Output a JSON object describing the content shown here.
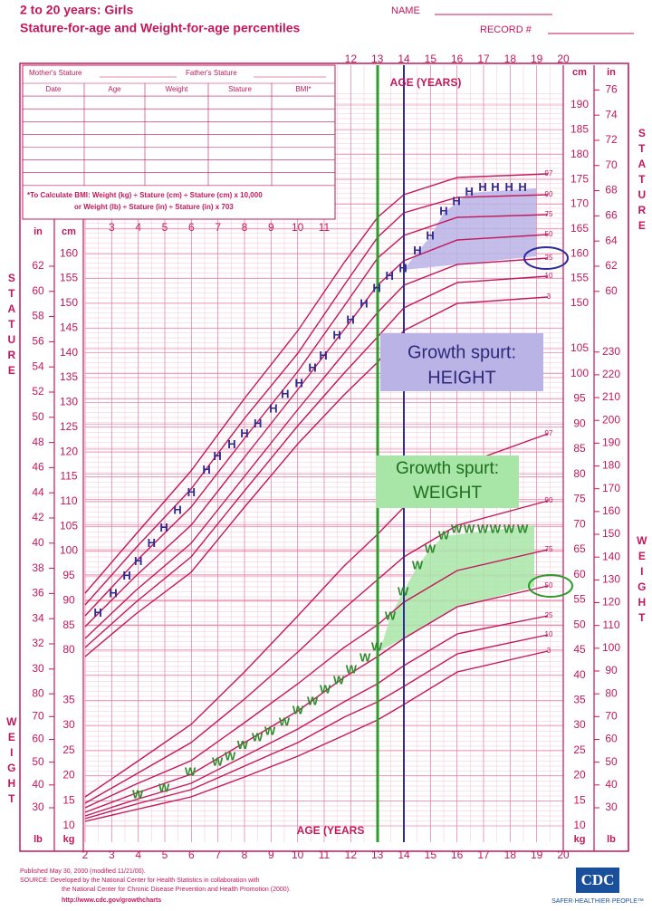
{
  "chart_data": {
    "type": "growth",
    "title": "2 to 20 years: Girls",
    "subtitle": "Stature-for-age and Weight-for-age percentiles",
    "name_label": "NAME",
    "record_label": "RECORD #",
    "x_label_top": "AGE (YEARS)",
    "x_label_bottom": "AGE (YEARS",
    "stature_label": "STATURE",
    "weight_label": "WEIGHT",
    "unit_cm": "cm",
    "unit_in": "in",
    "unit_kg": "kg",
    "unit_lb": "lb",
    "xlim": [
      2,
      20
    ],
    "xticks": [
      2,
      3,
      4,
      5,
      6,
      7,
      8,
      9,
      10,
      11,
      12,
      13,
      14,
      15,
      16,
      17,
      18,
      19,
      20
    ],
    "ylim": [
      80,
      190
    ],
    "yticks": [
      80,
      85,
      90,
      95,
      100,
      105,
      110,
      115,
      120,
      125,
      130,
      135,
      140,
      145,
      150,
      155,
      160,
      165,
      170,
      175,
      180,
      185,
      190
    ],
    "y_in_ticks": [
      30,
      32,
      34,
      36,
      38,
      40,
      42,
      44,
      46,
      48,
      50,
      52,
      54,
      56,
      58,
      60,
      62,
      64,
      66,
      68,
      70,
      72,
      74,
      76
    ],
    "y2lim": [
      10,
      105
    ],
    "y2ticks": [
      10,
      15,
      20,
      25,
      30,
      35,
      40,
      45,
      50,
      55,
      60,
      65,
      70,
      75,
      80,
      85,
      90,
      95,
      100,
      105
    ],
    "y2_lb_ticks": [
      30,
      40,
      50,
      60,
      70,
      80,
      90,
      100,
      110,
      120,
      130,
      140,
      150,
      160,
      170,
      180,
      190,
      200,
      210,
      220,
      230
    ],
    "percentile_labels": [
      97,
      90,
      75,
      50,
      25,
      10,
      3
    ],
    "grid": true,
    "series": [
      {
        "marker": "H",
        "color": "#2e2a8f",
        "axis": "y",
        "x": [
          2.48,
          3.06,
          3.57,
          4.0,
          4.5,
          4.97,
          5.48,
          6.0,
          6.57,
          6.98,
          7.52,
          8.0,
          8.5,
          9.09,
          9.53,
          10.05,
          10.56,
          10.97,
          11.48,
          11.99,
          12.5,
          12.98,
          13.46,
          13.97,
          14.51,
          14.99,
          15.5,
          15.98,
          16.46,
          16.97,
          17.44,
          17.96,
          18.47
        ],
        "values": [
          87.4,
          91.3,
          94.9,
          97.8,
          101.5,
          104.6,
          108.1,
          111.7,
          116.3,
          119.0,
          121.4,
          123.6,
          125.6,
          128.6,
          131.5,
          133.7,
          136.8,
          139.3,
          143.4,
          146.5,
          149.8,
          152.9,
          155.4,
          156.9,
          160.5,
          163.5,
          168.4,
          170.4,
          172.4,
          173.3,
          173.3,
          173.3,
          173.3
        ]
      },
      {
        "marker": "W",
        "color": "#2e8b2e",
        "axis": "y2",
        "x": [
          3.98,
          4.97,
          5.96,
          6.98,
          7.46,
          7.93,
          8.48,
          8.96,
          9.5,
          10.01,
          10.56,
          11.04,
          11.55,
          12.02,
          12.54,
          12.98,
          13.49,
          13.97,
          14.51,
          14.99,
          15.5,
          15.98,
          16.46,
          16.97,
          17.44,
          17.96,
          18.47
        ],
        "values": [
          16.1,
          17.4,
          20.6,
          22.6,
          23.7,
          25.9,
          27.5,
          28.7,
          30.5,
          32.9,
          34.7,
          37.0,
          38.8,
          41.0,
          43.3,
          45.5,
          51.6,
          56.5,
          61.7,
          65.0,
          67.7,
          68.9,
          68.9,
          68.9,
          68.9,
          68.9,
          68.9
        ]
      }
    ],
    "annotations": {
      "height_box": [
        "Growth spurt:",
        "HEIGHT"
      ],
      "weight_box": [
        "Growth spurt:",
        "WEIGHT"
      ]
    }
  },
  "record_table": {
    "mother_stature": "Mother's Stature",
    "father_stature": "Father's Stature",
    "columns": [
      "Date",
      "Age",
      "Weight",
      "Stature",
      "BMI*"
    ]
  },
  "bmi_note": [
    "*To Calculate BMI: Weight (kg) ÷ Stature (cm) ÷ Stature (cm) x 10,000",
    "or Weight (lb) ÷ Stature (in) ÷ Stature (in) x 703"
  ],
  "footer": {
    "published": "Published May 30, 2000 (modified 11/21/00).",
    "source": [
      "SOURCE: Developed by the National Center for Health Statistics in collaboration with",
      "the National Center for Chronic Disease Prevention and Health Promotion (2000).",
      "http://www.cdc.gov/growthcharts"
    ],
    "logo": "CDC",
    "tagline": "SAFER·HEALTHIER·PEOPLE™"
  }
}
